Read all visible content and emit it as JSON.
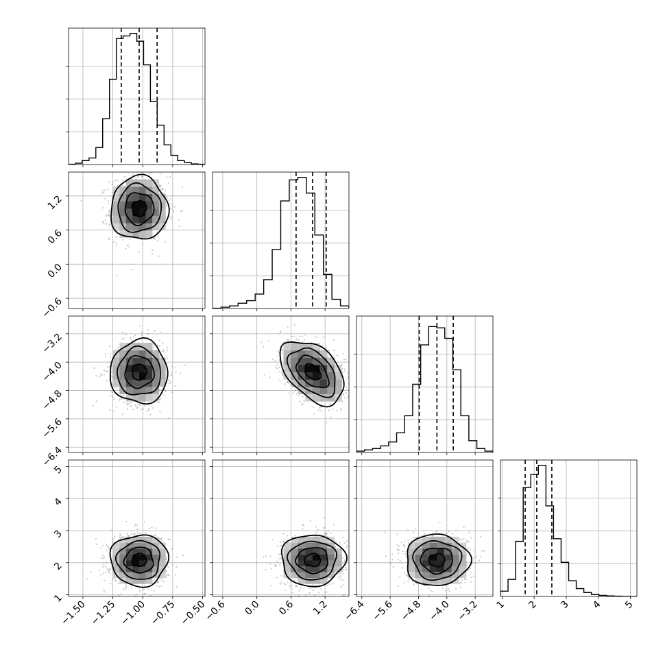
{
  "chart_data": {
    "type": "corner",
    "grid": true,
    "params": [
      {
        "range": [
          -1.62,
          -0.48
        ],
        "ticks": [
          -1.5,
          -1.25,
          -1.0,
          -0.75,
          -0.5
        ],
        "tick_labels": [
          "−1.50",
          "−1.25",
          "−1.00",
          "−0.75",
          "−0.50"
        ],
        "quantiles": [
          -1.18,
          -1.03,
          -0.88
        ],
        "mean": -1.03,
        "sd": 0.12
      },
      {
        "range": [
          -0.78,
          1.62
        ],
        "ticks": [
          -0.6,
          0.0,
          0.6,
          1.2
        ],
        "tick_labels": [
          "−0.6",
          "0.0",
          "0.6",
          "1.2"
        ],
        "quantiles": [
          0.69,
          0.98,
          1.22
        ],
        "mean": 0.98,
        "sd": 0.28
      },
      {
        "range": [
          -6.55,
          -2.7
        ],
        "ticks": [
          -6.4,
          -5.6,
          -4.8,
          -4.0,
          -3.2
        ],
        "tick_labels": [
          "−6.4",
          "−5.6",
          "−4.8",
          "−4.0",
          "−3.2"
        ],
        "quantiles": [
          -4.78,
          -4.28,
          -3.82
        ],
        "mean": -4.28,
        "sd": 0.45
      },
      {
        "range": [
          0.95,
          5.2
        ],
        "ticks": [
          1,
          2,
          3,
          4,
          5
        ],
        "tick_labels": [
          "1",
          "2",
          "3",
          "4",
          "5"
        ],
        "quantiles": [
          1.72,
          2.08,
          2.55
        ],
        "mean": 2.08,
        "sd": 0.4
      }
    ],
    "histograms": [
      [
        0.002,
        0.01,
        0.03,
        0.05,
        0.13,
        0.35,
        0.65,
        0.96,
        0.98,
        1.0,
        0.94,
        0.76,
        0.48,
        0.3,
        0.15,
        0.07,
        0.03,
        0.015,
        0.005,
        0.002
      ],
      [
        0.002,
        0.01,
        0.02,
        0.04,
        0.06,
        0.11,
        0.22,
        0.45,
        0.82,
        0.98,
        1.0,
        0.88,
        0.56,
        0.26,
        0.07,
        0.02
      ],
      [
        0.01,
        0.02,
        0.03,
        0.05,
        0.08,
        0.15,
        0.28,
        0.52,
        0.82,
        0.96,
        0.95,
        0.87,
        0.63,
        0.28,
        0.09,
        0.03,
        0.01
      ],
      [
        0.04,
        0.13,
        0.42,
        0.83,
        0.93,
        1.0,
        0.69,
        0.44,
        0.26,
        0.12,
        0.06,
        0.03,
        0.015,
        0.008,
        0.004,
        0.002,
        0.001,
        0.0
      ]
    ],
    "pairs": [
      {
        "x": 0,
        "y": 1,
        "rho": 0.0
      },
      {
        "x": 0,
        "y": 2,
        "rho": 0.0
      },
      {
        "x": 1,
        "y": 2,
        "rho": -0.45
      },
      {
        "x": 0,
        "y": 3,
        "rho": 0.0
      },
      {
        "x": 1,
        "y": 3,
        "rho": 0.0
      },
      {
        "x": 2,
        "y": 3,
        "rho": 0.0
      }
    ]
  }
}
